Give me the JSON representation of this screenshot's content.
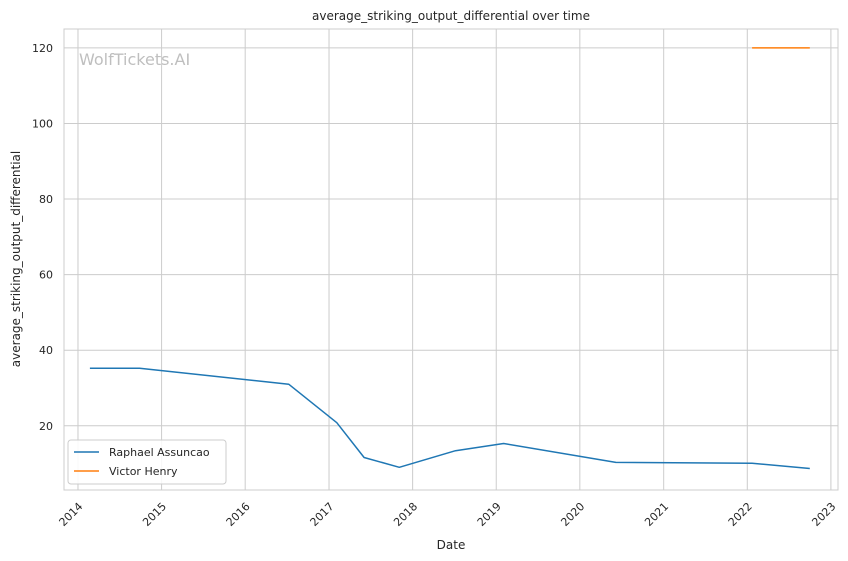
{
  "chart_data": {
    "type": "line",
    "title": "average_striking_output_differential over time",
    "xlabel": "Date",
    "ylabel": "average_striking_output_differential",
    "watermark": "WolfTickets.AI",
    "x_ticks": [
      "2014",
      "2015",
      "2016",
      "2017",
      "2018",
      "2019",
      "2020",
      "2021",
      "2022",
      "2023"
    ],
    "y_ticks": [
      20,
      40,
      60,
      80,
      100,
      120
    ],
    "xlim": [
      "2013-11-01",
      "2023-02-01"
    ],
    "ylim": [
      3,
      125
    ],
    "grid": true,
    "legend_position": "bottom-left",
    "series": [
      {
        "name": "Raphael Assuncao",
        "color": "#1f77b4",
        "points": [
          {
            "x": "2014-02-22",
            "y": 35.2
          },
          {
            "x": "2014-09-27",
            "y": 35.2
          },
          {
            "x": "2016-07-09",
            "y": 31.0
          },
          {
            "x": "2017-02-04",
            "y": 20.8
          },
          {
            "x": "2017-06-03",
            "y": 11.6
          },
          {
            "x": "2017-11-04",
            "y": 9.0
          },
          {
            "x": "2018-07-07",
            "y": 13.4
          },
          {
            "x": "2019-02-02",
            "y": 15.3
          },
          {
            "x": "2020-06-06",
            "y": 10.3
          },
          {
            "x": "2022-01-22",
            "y": 10.1
          },
          {
            "x": "2022-10-01",
            "y": 8.7
          }
        ]
      },
      {
        "name": "Victor Henry",
        "color": "#ff7f0e",
        "points": [
          {
            "x": "2022-01-22",
            "y": 120
          },
          {
            "x": "2022-10-01",
            "y": 120
          }
        ]
      }
    ]
  }
}
